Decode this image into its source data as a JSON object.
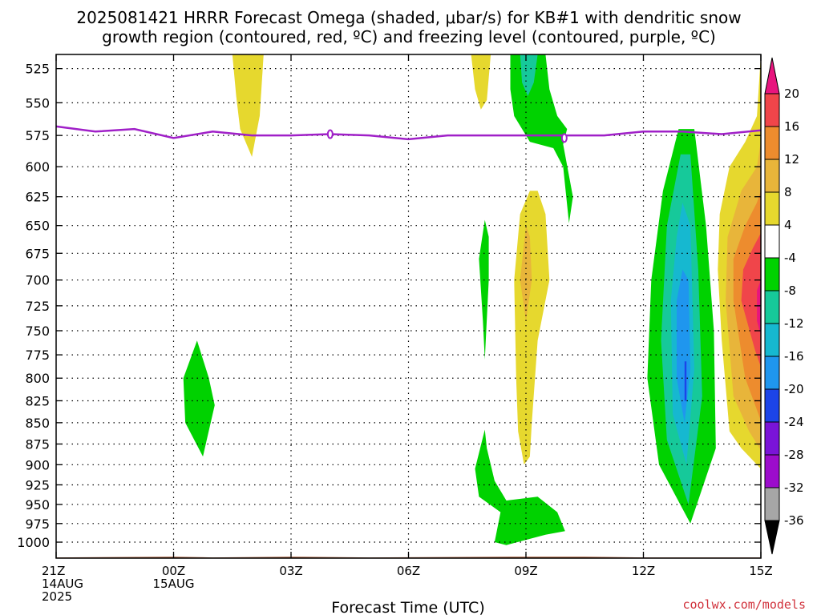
{
  "colors": {
    "yellow": "#e6d82e",
    "orange_light": "#e8b53a",
    "orange": "#ed8c2e",
    "red": "#f0454a",
    "magenta": "#e8157e",
    "green": "#00d200",
    "teal": "#16c99a",
    "cyan": "#16b8d0",
    "blue_light": "#1f96ee",
    "blue": "#1c44e8",
    "purple": "#7a14d8",
    "violet": "#9c0ccc",
    "gray": "#a6a6a6",
    "freezing_level": "#a020c8",
    "ground": "#a0522d",
    "credit": "#d0303a"
  },
  "chart_data": {
    "type": "contour",
    "title_lines": [
      "2025081421 HRRR Forecast Omega (shaded, μbar/s) for KB#1 with dendritic snow",
      "growth region (contoured, red, ºC) and freezing level (contoured, purple, ºC)"
    ],
    "xlabel": "Forecast Time (UTC)",
    "x_ticks": [
      {
        "h": 0,
        "lines": [
          "21Z",
          "14AUG",
          "2025"
        ]
      },
      {
        "h": 3,
        "lines": [
          "00Z",
          "15AUG"
        ]
      },
      {
        "h": 6,
        "lines": [
          "03Z"
        ]
      },
      {
        "h": 9,
        "lines": [
          "06Z"
        ]
      },
      {
        "h": 12,
        "lines": [
          "09Z"
        ]
      },
      {
        "h": 15,
        "lines": [
          "12Z"
        ]
      },
      {
        "h": 18,
        "lines": [
          "15Z"
        ]
      }
    ],
    "y_ticks": [
      525,
      550,
      575,
      600,
      625,
      650,
      675,
      700,
      725,
      750,
      775,
      800,
      825,
      850,
      875,
      900,
      925,
      950,
      975,
      1000
    ],
    "colorbar_labels": [
      "20",
      "16",
      "12",
      "8",
      "4",
      "-4",
      "-8",
      "-12",
      "-16",
      "-20",
      "-24",
      "-28",
      "-32",
      "-36"
    ],
    "colorbar_colors": [
      "#e8157e",
      "#f0454a",
      "#ed8c2e",
      "#e8b53a",
      "#e6d82e",
      "#ffffff",
      "#00d200",
      "#16c99a",
      "#16b8d0",
      "#1f96ee",
      "#1c44e8",
      "#7a14d8",
      "#9c0ccc",
      "#a6a6a6"
    ],
    "freezing_level": [
      [
        0,
        568
      ],
      [
        1,
        572
      ],
      [
        2,
        570
      ],
      [
        3,
        577
      ],
      [
        4,
        572
      ],
      [
        5,
        575
      ],
      [
        6,
        575
      ],
      [
        7,
        574
      ],
      [
        8,
        575
      ],
      [
        9,
        578
      ],
      [
        10,
        575
      ],
      [
        11,
        575
      ],
      [
        12,
        575
      ],
      [
        13,
        575
      ],
      [
        14,
        575
      ],
      [
        15,
        572
      ],
      [
        16,
        572
      ],
      [
        17,
        574
      ],
      [
        18,
        571
      ]
    ],
    "freezing_level_markers": [
      [
        7,
        574
      ],
      [
        12.98,
        577
      ]
    ],
    "omega_regions": [
      {
        "color": "#e6d82e",
        "pts": [
          [
            4.5,
            515
          ],
          [
            5.3,
            515
          ],
          [
            5.2,
            560
          ],
          [
            5.0,
            592
          ],
          [
            4.7,
            570
          ],
          [
            4.6,
            545
          ]
        ]
      },
      {
        "color": "#e6d82e",
        "pts": [
          [
            10.6,
            515
          ],
          [
            11.1,
            515
          ],
          [
            11.0,
            548
          ],
          [
            10.85,
            555
          ],
          [
            10.7,
            540
          ]
        ]
      },
      {
        "color": "#00d200",
        "pts": [
          [
            11.6,
            515
          ],
          [
            12.5,
            515
          ],
          [
            12.6,
            540
          ],
          [
            12.8,
            560
          ],
          [
            13.05,
            570
          ],
          [
            12.95,
            582
          ],
          [
            13.2,
            625
          ],
          [
            13.1,
            648
          ],
          [
            12.95,
            600
          ],
          [
            12.7,
            585
          ],
          [
            12.1,
            580
          ],
          [
            11.7,
            560
          ],
          [
            11.6,
            540
          ]
        ]
      },
      {
        "color": "#16c99a",
        "pts": [
          [
            11.85,
            515
          ],
          [
            12.3,
            515
          ],
          [
            12.2,
            535
          ],
          [
            12.05,
            545
          ],
          [
            11.9,
            535
          ]
        ]
      },
      {
        "color": "#e6d82e",
        "pts": [
          [
            12.1,
            620
          ],
          [
            11.85,
            640
          ],
          [
            11.7,
            700
          ],
          [
            11.75,
            800
          ],
          [
            11.8,
            860
          ],
          [
            11.95,
            900
          ],
          [
            12.1,
            890
          ],
          [
            12.15,
            850
          ],
          [
            12.3,
            760
          ],
          [
            12.6,
            700
          ],
          [
            12.5,
            640
          ],
          [
            12.3,
            620
          ]
        ]
      },
      {
        "color": "#e8b53a",
        "pts": [
          [
            12.0,
            650
          ],
          [
            11.85,
            700
          ],
          [
            12.0,
            740
          ],
          [
            12.15,
            700
          ],
          [
            12.1,
            660
          ]
        ]
      },
      {
        "color": "#00d200",
        "pts": [
          [
            10.95,
            645
          ],
          [
            10.8,
            680
          ],
          [
            10.9,
            740
          ],
          [
            10.95,
            780
          ],
          [
            11.05,
            700
          ],
          [
            11.05,
            660
          ]
        ]
      },
      {
        "color": "#00d200",
        "pts": [
          [
            10.95,
            858
          ],
          [
            10.7,
            905
          ],
          [
            10.8,
            940
          ],
          [
            11.35,
            960
          ],
          [
            11.2,
            1000
          ],
          [
            11.5,
            1004
          ],
          [
            12.5,
            990
          ],
          [
            13.0,
            985
          ],
          [
            12.8,
            960
          ],
          [
            12.3,
            940
          ],
          [
            11.5,
            945
          ],
          [
            11.2,
            920
          ],
          [
            11.0,
            880
          ]
        ]
      },
      {
        "color": "#00d200",
        "pts": [
          [
            3.6,
            760
          ],
          [
            3.25,
            800
          ],
          [
            3.3,
            850
          ],
          [
            3.75,
            890
          ],
          [
            4.05,
            830
          ],
          [
            3.9,
            800
          ]
        ]
      },
      {
        "color": "#00d200",
        "pts": [
          [
            15.9,
            570
          ],
          [
            16.3,
            570
          ],
          [
            16.6,
            650
          ],
          [
            16.8,
            750
          ],
          [
            16.85,
            880
          ],
          [
            16.2,
            975
          ],
          [
            15.4,
            900
          ],
          [
            15.1,
            800
          ],
          [
            15.2,
            700
          ],
          [
            15.5,
            620
          ]
        ]
      },
      {
        "color": "#16c99a",
        "pts": [
          [
            15.95,
            590
          ],
          [
            16.2,
            590
          ],
          [
            16.4,
            690
          ],
          [
            16.5,
            820
          ],
          [
            16.15,
            950
          ],
          [
            15.6,
            870
          ],
          [
            15.45,
            760
          ],
          [
            15.6,
            650
          ]
        ]
      },
      {
        "color": "#16b8d0",
        "pts": [
          [
            16.0,
            630
          ],
          [
            16.2,
            650
          ],
          [
            16.3,
            790
          ],
          [
            16.1,
            900
          ],
          [
            15.75,
            840
          ],
          [
            15.7,
            720
          ],
          [
            15.85,
            660
          ]
        ]
      },
      {
        "color": "#1f96ee",
        "pts": [
          [
            16.0,
            690
          ],
          [
            16.15,
            700
          ],
          [
            16.2,
            790
          ],
          [
            16.05,
            850
          ],
          [
            15.85,
            800
          ],
          [
            15.85,
            720
          ]
        ]
      },
      {
        "color": "#1c44e8",
        "pts": [
          [
            16.05,
            782
          ],
          [
            16.1,
            782
          ],
          [
            16.1,
            825
          ],
          [
            16.05,
            825
          ]
        ]
      },
      {
        "color": "#e6d82e",
        "pts": [
          [
            18.0,
            515
          ],
          [
            18.1,
            515
          ],
          [
            18.1,
            910
          ],
          [
            17.9,
            900
          ],
          [
            17.5,
            880
          ],
          [
            17.2,
            860
          ],
          [
            17.0,
            760
          ],
          [
            16.9,
            690
          ],
          [
            16.95,
            640
          ],
          [
            17.2,
            600
          ],
          [
            17.6,
            580
          ],
          [
            17.9,
            560
          ]
        ]
      },
      {
        "color": "#e8b53a",
        "pts": [
          [
            18.1,
            560
          ],
          [
            18.1,
            890
          ],
          [
            17.7,
            860
          ],
          [
            17.3,
            820
          ],
          [
            17.1,
            720
          ],
          [
            17.15,
            660
          ],
          [
            17.5,
            620
          ],
          [
            17.9,
            600
          ]
        ]
      },
      {
        "color": "#ed8c2e",
        "pts": [
          [
            18.1,
            610
          ],
          [
            18.1,
            860
          ],
          [
            17.6,
            800
          ],
          [
            17.3,
            720
          ],
          [
            17.3,
            680
          ],
          [
            17.6,
            650
          ],
          [
            17.9,
            630
          ]
        ]
      },
      {
        "color": "#f0454a",
        "pts": [
          [
            18.1,
            650
          ],
          [
            18.1,
            800
          ],
          [
            17.85,
            770
          ],
          [
            17.5,
            720
          ],
          [
            17.55,
            690
          ],
          [
            17.8,
            670
          ]
        ]
      },
      {
        "color": "#e8157e",
        "pts": [
          [
            18.1,
            690
          ],
          [
            18.1,
            770
          ],
          [
            17.9,
            740
          ],
          [
            17.9,
            710
          ]
        ]
      }
    ],
    "ground_profile": [
      [
        0,
        1021
      ],
      [
        3,
        1020
      ],
      [
        4,
        1021
      ],
      [
        6,
        1020
      ],
      [
        8,
        1021
      ],
      [
        12,
        1020
      ],
      [
        13.5,
        1020
      ],
      [
        15,
        1021
      ],
      [
        18,
        1021
      ]
    ]
  },
  "credit": "coolwx.com/models"
}
